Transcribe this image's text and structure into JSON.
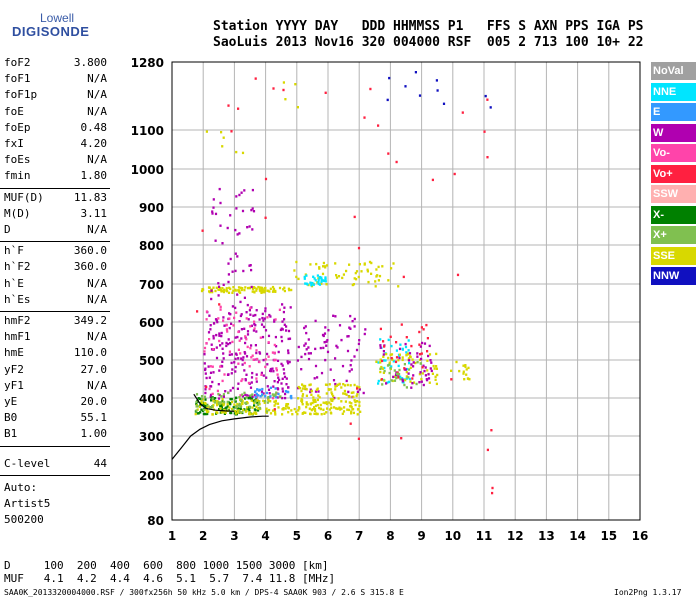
{
  "logo": {
    "line1": "Lowell",
    "line2": "DIGISONDE"
  },
  "header": {
    "line1": "Station YYYY DAY   DDD HHMMSS P1   FFS S AXN PPS IGA PS",
    "line2": "SaoLuis 2013 Nov16 320 004000 RSF  005 2 713 100 10+ 22"
  },
  "params_group1": [
    {
      "name": "foF2",
      "value": "3.800"
    },
    {
      "name": "foF1",
      "value": "N/A"
    },
    {
      "name": "foF1p",
      "value": "N/A"
    },
    {
      "name": "foE",
      "value": "N/A"
    },
    {
      "name": "foEp",
      "value": "0.48"
    },
    {
      "name": "fxI",
      "value": "4.20"
    },
    {
      "name": "foEs",
      "value": "N/A"
    },
    {
      "name": "fmin",
      "value": "1.80"
    }
  ],
  "params_group2": [
    {
      "name": "MUF(D)",
      "value": "11.83"
    },
    {
      "name": "M(D)",
      "value": "3.11"
    },
    {
      "name": "D",
      "value": "N/A"
    }
  ],
  "params_group3": [
    {
      "name": "h`F",
      "value": "360.0"
    },
    {
      "name": "h`F2",
      "value": "360.0"
    },
    {
      "name": "h`E",
      "value": "N/A"
    },
    {
      "name": "h`Es",
      "value": "N/A"
    }
  ],
  "params_group4": [
    {
      "name": "hmF2",
      "value": "349.2"
    },
    {
      "name": "hmF1",
      "value": "N/A"
    },
    {
      "name": "hmE",
      "value": "110.0"
    },
    {
      "name": "yF2",
      "value": "27.0"
    },
    {
      "name": "yF1",
      "value": "N/A"
    },
    {
      "name": "yE",
      "value": "20.0"
    },
    {
      "name": "B0",
      "value": "55.1"
    },
    {
      "name": "B1",
      "value": "1.00"
    }
  ],
  "clevel": {
    "name": "C-level",
    "value": "44"
  },
  "autoscaling": {
    "line1": "Auto:",
    "line2": "Artist5",
    "line3": "500200"
  },
  "muf_table": {
    "d_line": "D     100  200  400  600  800 1000 1500 3000 [km]",
    "muf_line": "MUF   4.1  4.2  4.4  4.6  5.1  5.7  7.4 11.8 [MHz]"
  },
  "footer": {
    "left": "SAA0K_2013320004000.RSF / 300fx256h 50 kHz 5.0 km / DPS-4 SAA0K 903 / 2.6 S 315.8 E",
    "right": "Ion2Png 1.3.17"
  },
  "legend": [
    {
      "label": "NoVal",
      "color": "#a0a0a0",
      "text_color": "#ffffff"
    },
    {
      "label": "NNE",
      "color": "#00e5ff",
      "text_color": "#ffffff"
    },
    {
      "label": "E",
      "color": "#3399ff",
      "text_color": "#ffffff"
    },
    {
      "label": "W",
      "color": "#b000b0",
      "text_color": "#ffffff"
    },
    {
      "label": "Vo-",
      "color": "#ff44aa",
      "text_color": "#ffffff"
    },
    {
      "label": "Vo+",
      "color": "#ff2040",
      "text_color": "#ffffff"
    },
    {
      "label": "SSW",
      "color": "#ffb0b0",
      "text_color": "#ffffff"
    },
    {
      "label": "X-",
      "color": "#008000",
      "text_color": "#ffffff"
    },
    {
      "label": "X+",
      "color": "#80c050",
      "text_color": "#ffffff"
    },
    {
      "label": "SSE",
      "color": "#d8d800",
      "text_color": "#ffffff"
    },
    {
      "label": "NNW",
      "color": "#1010c0",
      "text_color": "#ffffff"
    }
  ],
  "chart_data": {
    "type": "scatter",
    "xlim": [
      1,
      16
    ],
    "ylim": [
      80,
      1280
    ],
    "x_ticks": [
      "1",
      "2",
      "3",
      "4",
      "5",
      "6",
      "7",
      "8",
      "9",
      "10",
      "11",
      "12",
      "13",
      "14",
      "15",
      "16"
    ],
    "y_ticks": [
      "80",
      "200",
      "300",
      "400",
      "500",
      "600",
      "700",
      "800",
      "900",
      "1000",
      "1100",
      "1280"
    ],
    "grid": true,
    "trace": {
      "name": "",
      "x": [
        1.0,
        1.3,
        1.6,
        1.9,
        2.2,
        2.6,
        3.0,
        3.5,
        3.9,
        4.1
      ],
      "y": [
        240,
        270,
        300,
        318,
        330,
        340,
        345,
        350,
        352,
        352
      ]
    },
    "trace_upper": {
      "x": [
        1.7,
        1.9,
        2.1,
        2.4,
        2.7,
        3.0
      ],
      "y": [
        410,
        385,
        372,
        368,
        366,
        365
      ]
    },
    "echo_clusters": [
      {
        "series": "SSE",
        "x_range": [
          1.9,
          4.8
        ],
        "y_range": [
          680,
          695
        ],
        "count": 90
      },
      {
        "series": "SSE",
        "x_range": [
          4.8,
          8.3
        ],
        "y_range": [
          695,
          760
        ],
        "count": 60
      },
      {
        "series": "NNE",
        "x_range": [
          5.2,
          5.9
        ],
        "y_range": [
          700,
          725
        ],
        "count": 30
      },
      {
        "series": "W",
        "x_range": [
          2.0,
          4.8
        ],
        "y_range": [
          400,
          650
        ],
        "count": 240
      },
      {
        "series": "W",
        "x_range": [
          2.2,
          3.6
        ],
        "y_range": [
          650,
          960
        ],
        "count": 50
      },
      {
        "series": "Vo-",
        "x_range": [
          2.0,
          4.5
        ],
        "y_range": [
          390,
          650
        ],
        "count": 80
      },
      {
        "series": "X-",
        "x_range": [
          1.7,
          3.8
        ],
        "y_range": [
          360,
          405
        ],
        "count": 120
      },
      {
        "series": "SSE",
        "x_range": [
          1.7,
          7.0
        ],
        "y_range": [
          360,
          400
        ],
        "count": 220
      },
      {
        "series": "X+",
        "x_range": [
          1.7,
          4.5
        ],
        "y_range": [
          365,
          420
        ],
        "count": 60
      },
      {
        "series": "E",
        "x_range": [
          3.6,
          4.8
        ],
        "y_range": [
          400,
          430
        ],
        "count": 25
      },
      {
        "series": "W",
        "x_range": [
          5.0,
          7.2
        ],
        "y_range": [
          400,
          620
        ],
        "count": 80
      },
      {
        "series": "SSE",
        "x_range": [
          5.0,
          7.0
        ],
        "y_range": [
          400,
          440
        ],
        "count": 60
      },
      {
        "series": "NNE",
        "x_range": [
          7.5,
          8.6
        ],
        "y_range": [
          440,
          560
        ],
        "count": 40
      },
      {
        "series": "SSE",
        "x_range": [
          7.5,
          9.5
        ],
        "y_range": [
          440,
          520
        ],
        "count": 60
      },
      {
        "series": "W",
        "x_range": [
          7.6,
          9.3
        ],
        "y_range": [
          430,
          560
        ],
        "count": 50
      },
      {
        "series": "Vo+",
        "x_range": [
          7.6,
          9.2
        ],
        "y_range": [
          440,
          600
        ],
        "count": 25
      },
      {
        "series": "X+",
        "x_range": [
          7.6,
          9.0
        ],
        "y_range": [
          430,
          500
        ],
        "count": 25
      },
      {
        "series": "SSE",
        "x_range": [
          9.9,
          10.5
        ],
        "y_range": [
          450,
          500
        ],
        "count": 15
      },
      {
        "series": "SSE",
        "x_range": [
          1.7,
          4.0
        ],
        "y_range": [
          1030,
          1120
        ],
        "count": 6
      },
      {
        "series": "NNW",
        "x_range": [
          7.8,
          11.3
        ],
        "y_range": [
          1150,
          1270
        ],
        "count": 10
      },
      {
        "series": "Vo+",
        "x_range": [
          1.7,
          11.5
        ],
        "y_range": [
          150,
          1250
        ],
        "count": 40
      },
      {
        "series": "SSE",
        "x_range": [
          4.4,
          5.0
        ],
        "y_range": [
          1150,
          1240
        ],
        "count": 4
      }
    ]
  }
}
